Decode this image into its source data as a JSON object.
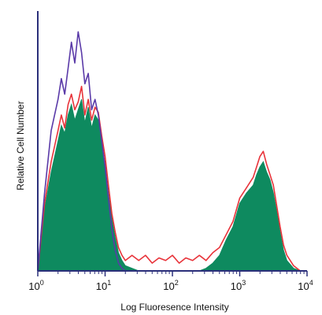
{
  "chart_data": {
    "type": "area",
    "title": "",
    "xlabel": "Log Fluoresence Intensity",
    "ylabel": "Relative Cell Number",
    "x_scale": "log",
    "xlim": [
      1,
      10000
    ],
    "ylim": [
      0,
      100
    ],
    "grid": false,
    "legend": "none",
    "x_ticks": [
      {
        "value": 1,
        "base": "10",
        "exp": "0"
      },
      {
        "value": 10,
        "base": "10",
        "exp": "1"
      },
      {
        "value": 100,
        "base": "10",
        "exp": "2"
      },
      {
        "value": 1000,
        "base": "10",
        "exp": "3"
      },
      {
        "value": 10000,
        "base": "10",
        "exp": "4"
      }
    ],
    "x": [
      1.0,
      1.26,
      1.58,
      2.0,
      2.24,
      2.51,
      2.82,
      3.16,
      3.55,
      3.98,
      4.47,
      5.01,
      5.62,
      6.31,
      7.08,
      7.94,
      8.91,
      10.0,
      11.2,
      12.6,
      14.1,
      15.8,
      17.8,
      20.0,
      25.1,
      31.6,
      39.8,
      50.1,
      63.1,
      79.4,
      100,
      126,
      158,
      200,
      251,
      316,
      398,
      501,
      631,
      794,
      1000,
      1259,
      1585,
      1778,
      1995,
      2239,
      2512,
      2818,
      3162,
      3548,
      3981,
      4467,
      5012,
      6310,
      7943
    ],
    "series": [
      {
        "color": "#0e8a5f",
        "fill": true,
        "values": [
          0,
          24,
          38,
          50,
          56,
          53,
          60,
          64,
          58,
          62,
          66,
          57,
          63,
          55,
          60,
          58,
          49,
          41,
          30,
          20,
          13,
          7,
          4,
          2,
          1,
          0,
          0,
          0,
          0,
          0,
          0,
          0,
          0,
          0,
          0,
          1,
          3,
          6,
          12,
          17,
          26,
          30,
          33,
          37,
          40,
          42,
          38,
          35,
          30,
          23,
          15,
          8,
          4,
          1,
          0
        ]
      },
      {
        "color": "#e8333a",
        "fill": false,
        "values": [
          0,
          26,
          42,
          54,
          60,
          55,
          64,
          68,
          62,
          65,
          71,
          60,
          66,
          58,
          63,
          61,
          52,
          44,
          33,
          22,
          15,
          9,
          6,
          4,
          6,
          4,
          6,
          3,
          5,
          4,
          6,
          3,
          5,
          4,
          6,
          4,
          7,
          9,
          14,
          19,
          28,
          32,
          36,
          40,
          44,
          46,
          41,
          37,
          33,
          25,
          17,
          10,
          6,
          2,
          0
        ]
      },
      {
        "color": "#5a3aa8",
        "fill": false,
        "values": [
          0,
          30,
          54,
          66,
          74,
          68,
          78,
          88,
          80,
          92,
          84,
          72,
          76,
          62,
          66,
          60,
          50,
          40,
          28,
          16,
          8,
          3,
          1,
          0,
          0,
          0,
          0,
          0,
          0,
          0,
          0,
          0,
          0,
          0,
          0,
          0,
          0,
          0,
          0,
          0,
          0,
          0,
          0,
          0,
          0,
          0,
          0,
          0,
          0,
          0,
          0,
          0,
          0,
          0,
          0
        ]
      }
    ]
  }
}
